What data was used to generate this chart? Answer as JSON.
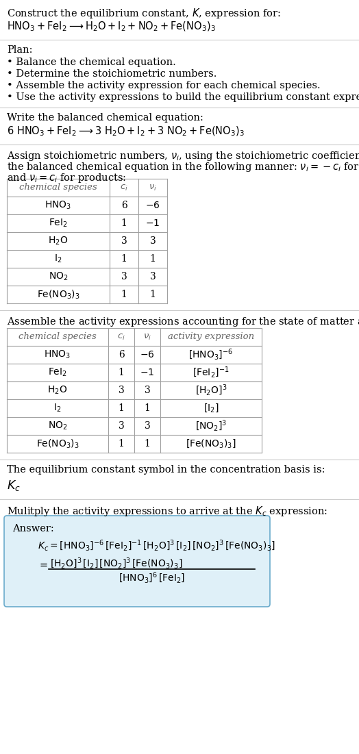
{
  "title_line1": "Construct the equilibrium constant, $K$, expression for:",
  "title_line2": "$\\mathrm{HNO_3 + FeI_2 \\longrightarrow H_2O + I_2 + NO_2 + Fe(NO_3)_3}$",
  "plan_title": "Plan:",
  "plan_items": [
    "• Balance the chemical equation.",
    "• Determine the stoichiometric numbers.",
    "• Assemble the activity expression for each chemical species.",
    "• Use the activity expressions to build the equilibrium constant expression."
  ],
  "balanced_title": "Write the balanced chemical equation:",
  "balanced_eq": "$\\mathrm{6\\ HNO_3 + FeI_2 \\longrightarrow 3\\ H_2O + I_2 + 3\\ NO_2 + Fe(NO_3)_3}$",
  "stoich_intro1": "Assign stoichiometric numbers, $\\nu_i$, using the stoichiometric coefficients, $c_i$, from",
  "stoich_intro2": "the balanced chemical equation in the following manner: $\\nu_i = -c_i$ for reactants",
  "stoich_intro3": "and $\\nu_i = c_i$ for products:",
  "table1_headers": [
    "chemical species",
    "$c_i$",
    "$\\nu_i$"
  ],
  "table1_rows": [
    [
      "$\\mathrm{HNO_3}$",
      "6",
      "$-6$"
    ],
    [
      "$\\mathrm{FeI_2}$",
      "1",
      "$-1$"
    ],
    [
      "$\\mathrm{H_2O}$",
      "3",
      "3"
    ],
    [
      "$\\mathrm{I_2}$",
      "1",
      "1"
    ],
    [
      "$\\mathrm{NO_2}$",
      "3",
      "3"
    ],
    [
      "$\\mathrm{Fe(NO_3)_3}$",
      "1",
      "1"
    ]
  ],
  "assemble_intro": "Assemble the activity expressions accounting for the state of matter and $\\nu_i$:",
  "table2_headers": [
    "chemical species",
    "$c_i$",
    "$\\nu_i$",
    "activity expression"
  ],
  "table2_rows": [
    [
      "$\\mathrm{HNO_3}$",
      "6",
      "$-6$",
      "$[\\mathrm{HNO_3}]^{-6}$"
    ],
    [
      "$\\mathrm{FeI_2}$",
      "1",
      "$-1$",
      "$[\\mathrm{FeI_2}]^{-1}$"
    ],
    [
      "$\\mathrm{H_2O}$",
      "3",
      "3",
      "$[\\mathrm{H_2O}]^3$"
    ],
    [
      "$\\mathrm{I_2}$",
      "1",
      "1",
      "$[\\mathrm{I_2}]$"
    ],
    [
      "$\\mathrm{NO_2}$",
      "3",
      "3",
      "$[\\mathrm{NO_2}]^3$"
    ],
    [
      "$\\mathrm{Fe(NO_3)_3}$",
      "1",
      "1",
      "$[\\mathrm{Fe(NO_3)_3}]$"
    ]
  ],
  "kc_intro": "The equilibrium constant symbol in the concentration basis is:",
  "kc_symbol": "$K_c$",
  "multiply_intro": "Mulitply the activity expressions to arrive at the $K_c$ expression:",
  "answer_label": "Answer:",
  "answer_line1": "$K_c = [\\mathrm{HNO_3}]^{-6}\\,[\\mathrm{FeI_2}]^{-1}\\,[\\mathrm{H_2O}]^3\\,[\\mathrm{I_2}]\\,[\\mathrm{NO_2}]^3\\,[\\mathrm{Fe(NO_3)_3}]$",
  "answer_eq_sign": "$=$",
  "answer_numerator": "$[\\mathrm{H_2O}]^3\\,[\\mathrm{I_2}]\\,[\\mathrm{NO_2}]^3\\,[\\mathrm{Fe(NO_3)_3}]$",
  "answer_denominator": "$[\\mathrm{HNO_3}]^6\\,[\\mathrm{FeI_2}]$",
  "bg_color": "#ffffff",
  "text_color": "#000000",
  "table_border_color": "#a0a0a0",
  "answer_box_bg": "#dff0f8",
  "answer_box_border": "#6aabcc",
  "separator_color": "#cccccc",
  "header_text_color": "#666666"
}
